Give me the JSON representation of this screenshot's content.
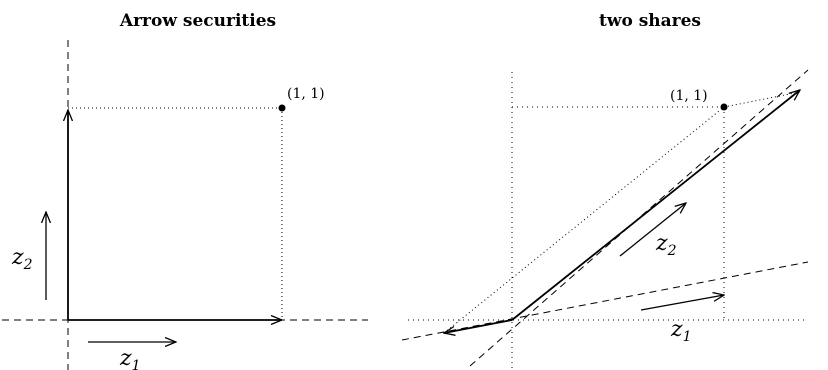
{
  "left_panel": {
    "title": "Arrow securities",
    "point_label": "(1, 1)",
    "z1": {
      "var": "z",
      "sub": "1"
    },
    "z2": {
      "var": "z",
      "sub": "2"
    }
  },
  "right_panel": {
    "title": "two shares",
    "point_label": "(1, 1)",
    "z1": {
      "var": "z",
      "sub": "1"
    },
    "z2": {
      "var": "z",
      "sub": "2"
    }
  }
}
